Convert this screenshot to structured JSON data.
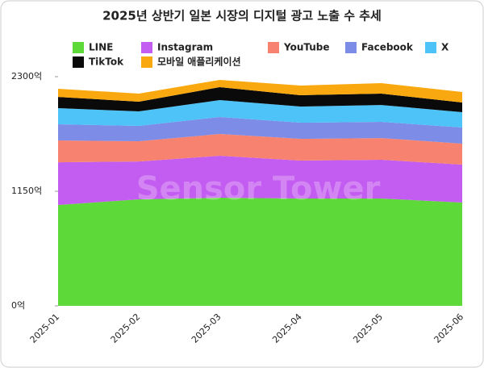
{
  "chart_data": {
    "type": "stacked_area",
    "title": "2025년 상반기 일본 시장의 디지털 광고 노출 수 추세",
    "watermark": "Sensor Tower",
    "categories": [
      "2025-01",
      "2025-02",
      "2025-03",
      "2025-04",
      "2025-05",
      "2025-06"
    ],
    "series": [
      {
        "name": "LINE",
        "color": "#5dd93a",
        "values": [
          1012,
          1069,
          1085,
          1077,
          1077,
          1037
        ]
      },
      {
        "name": "Instagram",
        "color": "#c35cf0",
        "values": [
          429,
          380,
          421,
          381,
          389,
          380
        ]
      },
      {
        "name": "YouTube",
        "color": "#f7826f",
        "values": [
          219,
          203,
          219,
          218,
          218,
          211
        ]
      },
      {
        "name": "Facebook",
        "color": "#7d8ce6",
        "values": [
          162,
          154,
          170,
          162,
          162,
          162
        ]
      },
      {
        "name": "X",
        "color": "#4dc3f7",
        "values": [
          162,
          146,
          170,
          162,
          170,
          154
        ]
      },
      {
        "name": "TikTok",
        "color": "#0a0a0a",
        "values": [
          113,
          97,
          130,
          114,
          114,
          97
        ]
      },
      {
        "name": "모바일 애플리케이션",
        "color": "#f9a90f",
        "values": [
          82,
          81,
          73,
          97,
          105,
          105
        ]
      }
    ],
    "ylim": [
      0,
      2300
    ],
    "yticks": [
      {
        "value": 0,
        "label": "0억"
      },
      {
        "value": 1150,
        "label": "1150억"
      },
      {
        "value": 2300,
        "label": "2300억"
      }
    ]
  }
}
